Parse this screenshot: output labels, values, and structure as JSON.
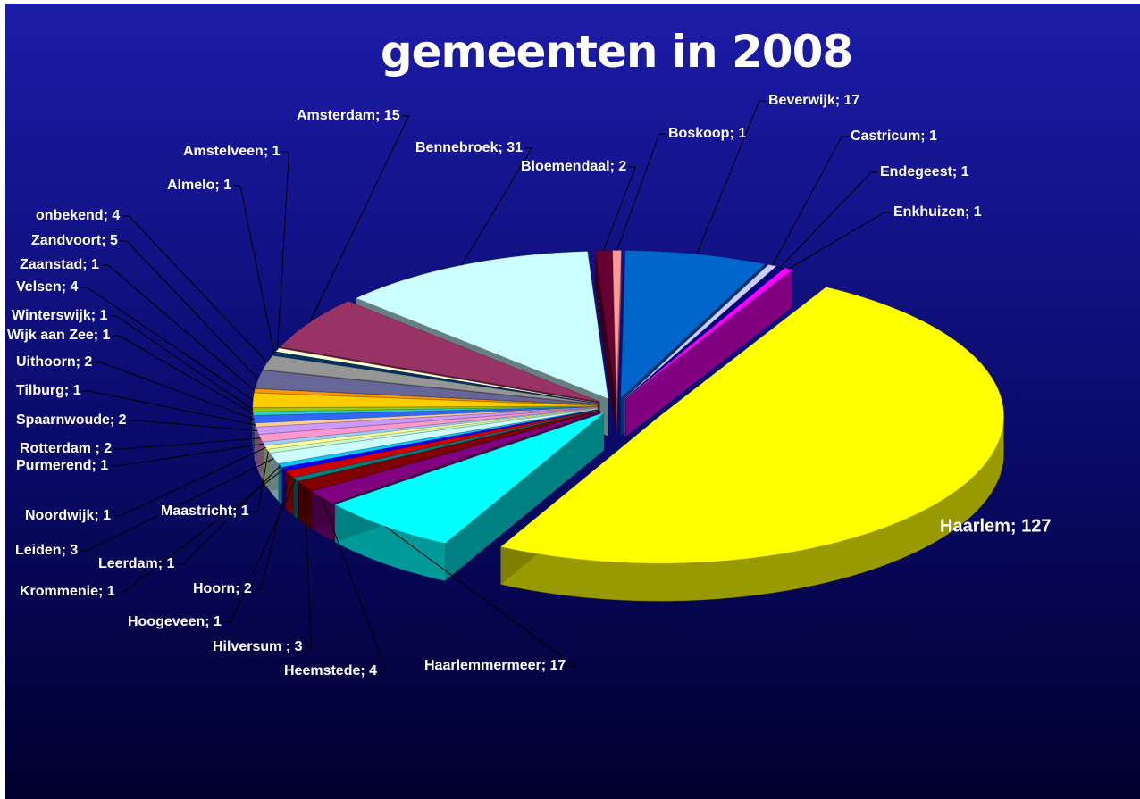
{
  "chart_data": {
    "type": "pie",
    "title": "gemeenten in 2008",
    "categories": [
      "Bloemendaal",
      "Boskoop",
      "Beverwijk",
      "Castricum",
      "Endegeest",
      "Enkhuizen",
      "Haarlem",
      "Haarlemmermeer",
      "Heemstede",
      "Hilversum ",
      "Hoogeveen",
      "Hoorn",
      "Krommenie",
      "Leerdam",
      "Leiden",
      "Maastricht",
      "Noordwijk",
      "Purmerend",
      "Rotterdam ",
      "Spaarnwoude",
      "Tilburg",
      "Uithoorn",
      "Wijk aan Zee",
      "Winterswijk",
      "Velsen",
      "Zaanstad",
      "Zandvoort",
      "onbekend",
      "Almelo",
      "Amstelveen",
      "Amsterdam",
      "Bennebroek"
    ],
    "values": [
      2,
      1,
      17,
      1,
      1,
      1,
      127,
      17,
      4,
      3,
      1,
      2,
      1,
      1,
      3,
      1,
      1,
      1,
      2,
      2,
      1,
      2,
      1,
      1,
      4,
      1,
      5,
      4,
      1,
      1,
      15,
      31
    ],
    "value_labels": [
      "Bloemendaal; 2",
      "Boskoop; 1",
      "Beverwijk; 17",
      "Castricum; 1",
      "Endegeest; 1",
      "Enkhuizen; 1",
      "Haarlem; 127",
      "Haarlemmermeer; 17",
      "Heemstede; 4",
      "Hilversum ; 3",
      "Hoogeveen; 1",
      "Hoorn; 2",
      "Krommenie; 1",
      "Leerdam; 1",
      "Leiden; 3",
      "Maastricht; 1",
      "Noordwijk; 1",
      "Purmerend; 1",
      "Rotterdam ; 2",
      "Spaarnwoude; 2",
      "Tilburg; 1",
      "Uithoorn; 2",
      "Wijk aan Zee; 1",
      "Winterswijk; 1",
      "Velsen; 4",
      "Zaanstad; 1",
      "Zandvoort; 5",
      "onbekend; 4",
      "Almelo; 1",
      "Amstelveen; 1",
      "Amsterdam; 15",
      "Bennebroek; 31"
    ],
    "colors": [
      "#660033",
      "#ff9999",
      "#0066cc",
      "#ccccff",
      "#000080",
      "#ff00ff",
      "#ffff00",
      "#00ffff",
      "#800080",
      "#800000",
      "#008080",
      "#cc0000",
      "#0000ff",
      "#00ccff",
      "#ccffff",
      "#ccffcc",
      "#ffff99",
      "#99ccff",
      "#ff99cc",
      "#cc99ff",
      "#ffcc99",
      "#3366ff",
      "#33cccc",
      "#99cc00",
      "#ffcc00",
      "#ff9900",
      "#666699",
      "#969696",
      "#003366",
      "#ffffcc",
      "#993366",
      "#ccffff"
    ]
  }
}
